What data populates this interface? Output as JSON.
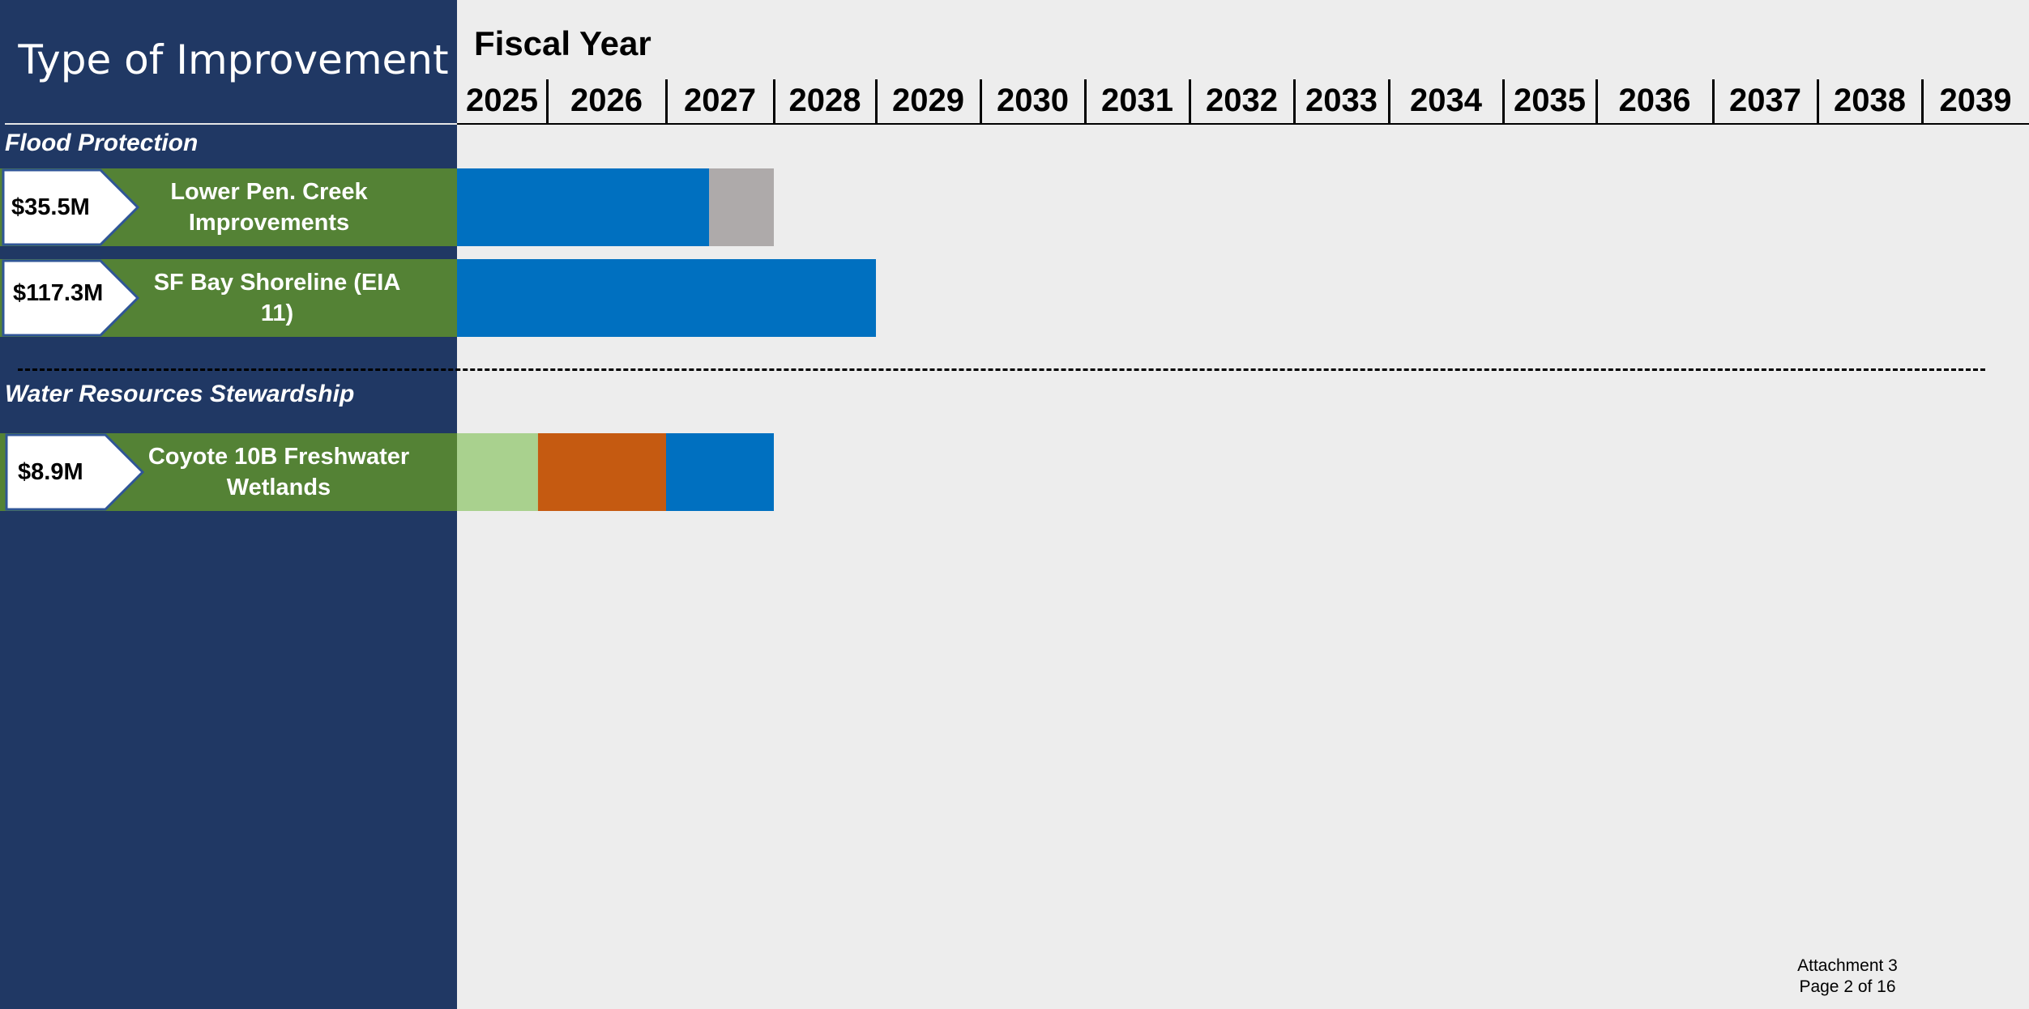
{
  "panel": {
    "title": "Type of Improvement"
  },
  "chart_data": {
    "type": "gantt",
    "title": "Fiscal Year",
    "years": [
      "2025",
      "2026",
      "2027",
      "2028",
      "2029",
      "2030",
      "2031",
      "2032",
      "2033",
      "2034",
      "2035",
      "2036",
      "2037",
      "2038",
      "2039"
    ],
    "sections": [
      {
        "heading": "Flood Protection",
        "projects": [
          {
            "cost": "$35.5M",
            "name_lines": [
              "Lower Pen. Creek",
              "Improvements"
            ],
            "segments": [
              {
                "start": 2025.0,
                "end": 2027.4,
                "color": "#0070c0"
              },
              {
                "start": 2027.4,
                "end": 2028.0,
                "color": "#aeaaaa"
              }
            ]
          },
          {
            "cost": "$117.3M",
            "name_lines": [
              "SF Bay Shoreline (EIA 11)"
            ],
            "segments": [
              {
                "start": 2025.0,
                "end": 2029.0,
                "color": "#0070c0"
              }
            ]
          }
        ]
      },
      {
        "heading": "Water Resources Stewardship",
        "projects": [
          {
            "cost": "$8.9M",
            "name_lines": [
              "Coyote 10B Freshwater",
              "Wetlands"
            ],
            "segments": [
              {
                "start": 2025.0,
                "end": 2025.9,
                "color": "#a9d18e"
              },
              {
                "start": 2025.9,
                "end": 2027.0,
                "color": "#c55a11"
              },
              {
                "start": 2027.0,
                "end": 2028.0,
                "color": "#0070c0"
              }
            ]
          }
        ]
      }
    ]
  },
  "footer": {
    "line1": "Attachment 3",
    "line2": "Page 2 of 16"
  }
}
